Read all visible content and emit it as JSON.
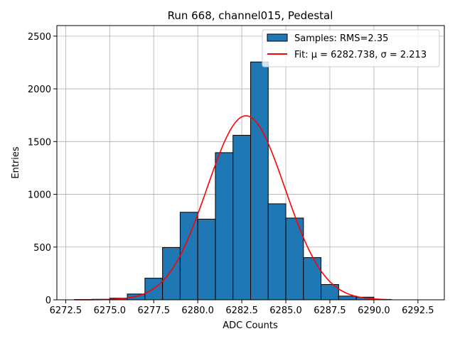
{
  "chart_data": {
    "type": "bar",
    "title": "Run 668, channel015, Pedestal",
    "xlabel": "ADC Counts",
    "ylabel": "Entries",
    "xlim": [
      6272.0,
      6294.0
    ],
    "ylim": [
      0,
      2600
    ],
    "x_ticks": [
      6272.5,
      6275.0,
      6277.5,
      6280.0,
      6282.5,
      6285.0,
      6287.5,
      6290.0,
      6292.5
    ],
    "x_tick_labels": [
      "6272.5",
      "6275.0",
      "6277.5",
      "6280.0",
      "6282.5",
      "6285.0",
      "6287.5",
      "6290.0",
      "6292.5"
    ],
    "y_ticks": [
      0,
      500,
      1000,
      1500,
      2000,
      2500
    ],
    "y_tick_labels": [
      "0",
      "500",
      "1000",
      "1500",
      "2000",
      "2500"
    ],
    "grid": true,
    "legend_position": "top-right",
    "series": [
      {
        "name": "Samples: RMS=2.35",
        "kind": "histogram",
        "color": "#1f77b4",
        "edge_color": "#000000",
        "bin_edges": [
          6273,
          6274,
          6275,
          6276,
          6277,
          6278,
          6279,
          6280,
          6281,
          6282,
          6283,
          6284,
          6285,
          6286,
          6287,
          6288,
          6289,
          6290,
          6291
        ],
        "values": [
          3,
          5,
          15,
          55,
          205,
          495,
          830,
          765,
          1395,
          1560,
          2255,
          910,
          775,
          400,
          145,
          35,
          25,
          2
        ]
      },
      {
        "name": "Fit: μ = 6282.738, σ = 2.213",
        "kind": "gaussian",
        "color": "#ff0000",
        "mu": 6282.738,
        "sigma": 2.213,
        "amplitude": 1745,
        "x_range": [
          6273,
          6291
        ]
      }
    ]
  }
}
